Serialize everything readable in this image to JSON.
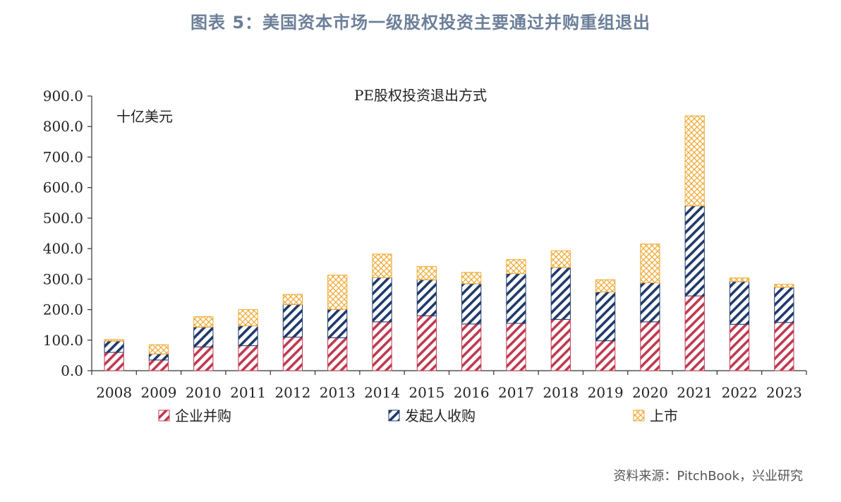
{
  "figure_title": "图表 5：美国资本市场一级股权投资主要通过并购重组退出",
  "source_note": "资料来源：PitchBook，兴业研究",
  "chart_data": {
    "type": "bar",
    "stacked": true,
    "title": "PE股权投资退出方式",
    "unit_label": "十亿美元",
    "categories": [
      "2008",
      "2009",
      "2010",
      "2011",
      "2012",
      "2013",
      "2014",
      "2015",
      "2016",
      "2017",
      "2018",
      "2019",
      "2020",
      "2021",
      "2022",
      "2023"
    ],
    "series": [
      {
        "name": "企业并购",
        "color": "#c0394f",
        "pattern": "diagonal-hatch",
        "values": [
          60,
          35,
          78,
          82,
          110,
          108,
          160,
          180,
          153,
          155,
          168,
          98,
          160,
          245,
          152,
          158
        ]
      },
      {
        "name": "发起人收购",
        "color": "#1f3a6b",
        "pattern": "diagonal-hatch",
        "values": [
          37,
          20,
          65,
          65,
          107,
          93,
          145,
          118,
          132,
          163,
          170,
          160,
          128,
          295,
          140,
          115
        ]
      },
      {
        "name": "上市",
        "color": "#f0a830",
        "pattern": "crosshatch",
        "values": [
          5,
          30,
          34,
          53,
          33,
          112,
          77,
          43,
          37,
          46,
          55,
          40,
          127,
          295,
          12,
          10
        ]
      }
    ],
    "ylim": [
      0,
      900
    ],
    "yticks": [
      "0.0",
      "100.0",
      "200.0",
      "300.0",
      "400.0",
      "500.0",
      "600.0",
      "700.0",
      "800.0",
      "900.0"
    ],
    "grid": false,
    "legend_position": "bottom"
  }
}
